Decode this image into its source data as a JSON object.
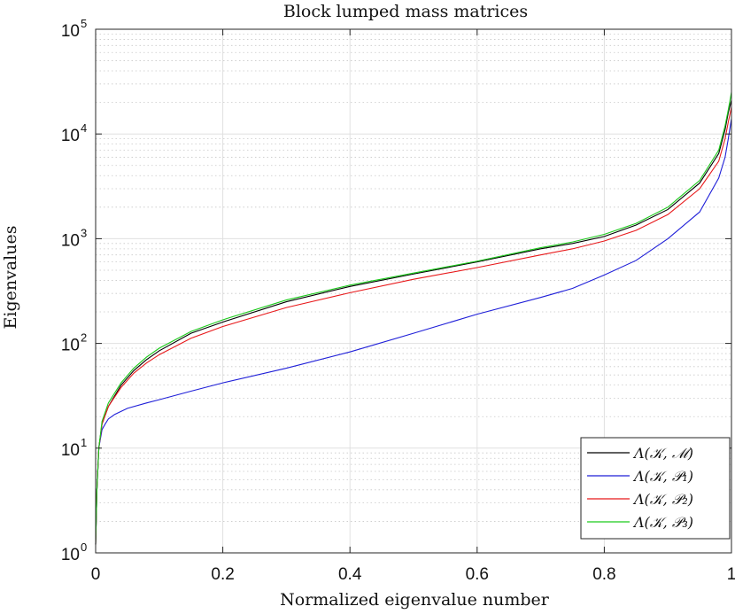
{
  "chart_data": {
    "type": "line",
    "title": "Block lumped mass matrices",
    "xlabel": "Normalized eigenvalue number",
    "ylabel": "Eigenvalues",
    "xlim": [
      0,
      1
    ],
    "ylim": [
      1,
      100000
    ],
    "yscale": "log",
    "grid": true,
    "legend_position": "bottom-right",
    "x_ticks": [
      "0",
      "0.2",
      "0.4",
      "0.6",
      "0.8",
      "1"
    ],
    "y_ticks": [
      {
        "base": "10",
        "exp": "0"
      },
      {
        "base": "10",
        "exp": "1"
      },
      {
        "base": "10",
        "exp": "2"
      },
      {
        "base": "10",
        "exp": "3"
      },
      {
        "base": "10",
        "exp": "4"
      },
      {
        "base": "10",
        "exp": "5"
      }
    ],
    "series": [
      {
        "name": "Λ(𝒦, ℳ)",
        "color": "#000000",
        "x": [
          0,
          0.002,
          0.005,
          0.01,
          0.02,
          0.04,
          0.06,
          0.08,
          0.1,
          0.15,
          0.2,
          0.3,
          0.4,
          0.5,
          0.6,
          0.7,
          0.75,
          0.8,
          0.85,
          0.9,
          0.95,
          0.98,
          0.99,
          0.995,
          1.0
        ],
        "y": [
          1.2,
          4,
          10,
          17,
          25,
          40,
          55,
          70,
          85,
          125,
          160,
          250,
          350,
          460,
          600,
          800,
          900,
          1050,
          1350,
          1900,
          3400,
          6500,
          11000,
          16000,
          21000
        ]
      },
      {
        "name": "Λ(𝒦, 𝒫₁)",
        "color": "#1f1fd8",
        "x": [
          0,
          0.002,
          0.005,
          0.01,
          0.015,
          0.02,
          0.03,
          0.05,
          0.08,
          0.1,
          0.15,
          0.2,
          0.3,
          0.4,
          0.5,
          0.6,
          0.7,
          0.75,
          0.8,
          0.85,
          0.9,
          0.95,
          0.98,
          0.99,
          0.995,
          1.0
        ],
        "y": [
          1.2,
          4,
          10,
          15,
          17,
          19,
          21,
          24,
          27,
          29,
          35,
          42,
          58,
          83,
          125,
          190,
          275,
          335,
          450,
          620,
          1000,
          1800,
          3800,
          6000,
          9000,
          14000
        ]
      },
      {
        "name": "Λ(𝒦, 𝒫₂)",
        "color": "#e8191b",
        "x": [
          0,
          0.002,
          0.005,
          0.01,
          0.02,
          0.04,
          0.06,
          0.08,
          0.1,
          0.15,
          0.2,
          0.3,
          0.4,
          0.5,
          0.6,
          0.7,
          0.75,
          0.8,
          0.85,
          0.9,
          0.95,
          0.98,
          0.99,
          0.995,
          1.0
        ],
        "y": [
          1.2,
          4,
          10,
          17,
          25,
          38,
          52,
          65,
          78,
          112,
          145,
          220,
          305,
          410,
          530,
          700,
          800,
          950,
          1200,
          1700,
          3000,
          5500,
          9000,
          13000,
          18000
        ]
      },
      {
        "name": "Λ(𝒦, 𝒫₃)",
        "color": "#1ac91a",
        "x": [
          0,
          0.002,
          0.005,
          0.01,
          0.02,
          0.04,
          0.06,
          0.08,
          0.1,
          0.15,
          0.2,
          0.3,
          0.4,
          0.5,
          0.6,
          0.7,
          0.75,
          0.8,
          0.85,
          0.9,
          0.95,
          0.98,
          0.99,
          0.995,
          1.0
        ],
        "y": [
          1.2,
          4,
          10,
          18,
          27,
          42,
          58,
          74,
          90,
          130,
          168,
          260,
          360,
          470,
          610,
          820,
          930,
          1100,
          1400,
          2000,
          3600,
          7000,
          12000,
          17000,
          25000
        ]
      }
    ]
  }
}
